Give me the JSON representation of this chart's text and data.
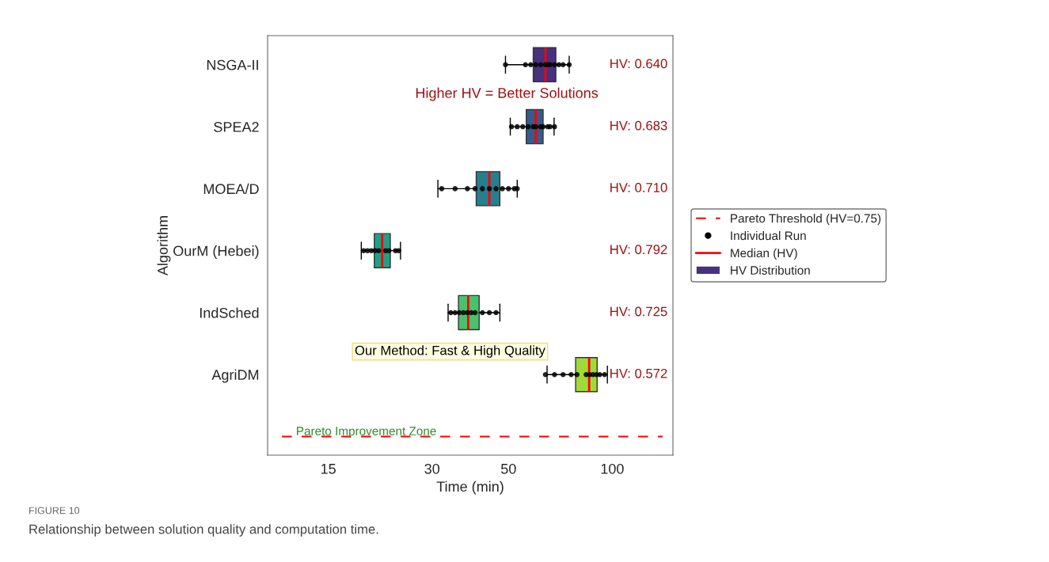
{
  "chart_data": {
    "type": "box",
    "orientation": "horizontal",
    "xlabel": "Time (min)",
    "ylabel": "Algorithm",
    "categories": [
      "NSGA-II",
      "SPEA2",
      "MOEA/D",
      "OurM (Hebei)",
      "IndSched",
      "AgriDM",
      null
    ],
    "log": "x",
    "xlim": [
      10,
      150
    ],
    "xticks": [
      15,
      30,
      50,
      100
    ],
    "grid": false,
    "legend": "right",
    "series": [
      {
        "type": "line",
        "name": "Pareto Threshold (HV=0.75)",
        "color": "#ff0000",
        "line_style": "dashed",
        "x": [
          null,
          null
        ],
        "values": [
          11,
          140
        ]
      },
      {
        "type": "scatter",
        "name": "Individual Run",
        "color": "#000000",
        "marker": "circle",
        "x": [
          "NSGA-II",
          "NSGA-II",
          "NSGA-II",
          "NSGA-II",
          "NSGA-II",
          "NSGA-II",
          "NSGA-II",
          "NSGA-II",
          "NSGA-II",
          "NSGA-II",
          "NSGA-II",
          "NSGA-II",
          "SPEA2",
          "SPEA2",
          "SPEA2",
          "SPEA2",
          "SPEA2",
          "SPEA2",
          "SPEA2",
          "SPEA2",
          "SPEA2",
          "SPEA2",
          "SPEA2",
          "MOEA/D",
          "MOEA/D",
          "MOEA/D",
          "MOEA/D",
          "MOEA/D",
          "MOEA/D",
          "MOEA/D",
          "MOEA/D",
          "MOEA/D",
          "MOEA/D",
          "MOEA/D",
          "OurM (Hebei)",
          "OurM (Hebei)",
          "OurM (Hebei)",
          "OurM (Hebei)",
          "OurM (Hebei)",
          "OurM (Hebei)",
          "OurM (Hebei)",
          "OurM (Hebei)",
          "OurM (Hebei)",
          "IndSched",
          "IndSched",
          "IndSched",
          "IndSched",
          "IndSched",
          "IndSched",
          "IndSched",
          "IndSched",
          "IndSched",
          "IndSched",
          "AgriDM",
          "AgriDM",
          "AgriDM",
          "AgriDM",
          "AgriDM",
          "AgriDM",
          "AgriDM",
          "AgriDM",
          "AgriDM",
          "AgriDM",
          "AgriDM"
        ],
        "values": [
          49,
          56,
          58,
          60,
          62,
          64,
          65,
          66,
          68,
          70,
          72,
          75,
          51,
          53,
          55,
          57,
          59,
          60,
          62,
          63,
          65,
          66,
          68,
          32,
          35,
          38,
          40,
          42,
          44,
          46,
          48,
          50,
          52,
          53,
          19,
          19.5,
          20,
          20.5,
          21,
          22,
          22.5,
          23.5,
          24,
          34,
          35,
          36,
          37,
          38,
          39,
          40,
          42,
          44,
          46,
          64,
          68,
          72,
          76,
          79,
          84,
          86,
          88,
          90,
          92,
          95
        ]
      },
      {
        "name": "HV Distribution",
        "color": "#46327e",
        "colors": [
          "#46327e",
          "#365c8d",
          "#277f8e",
          "#1fa187",
          "#4ac16d",
          "#a0da39",
          null
        ],
        "boxes": [
          {
            "low": 49,
            "q1": 59,
            "median": 64,
            "q3": 68.6,
            "high": 75
          },
          {
            "low": 50.6,
            "q1": 56.3,
            "median": 60,
            "q3": 63,
            "high": 67.8
          },
          {
            "low": 31.2,
            "q1": 40.3,
            "median": 44,
            "q3": 47.2,
            "high": 53
          },
          {
            "low": 18.7,
            "q1": 20.4,
            "median": 21.5,
            "q3": 22.7,
            "high": 24.3
          },
          {
            "low": 33.4,
            "q1": 35.8,
            "median": 38.2,
            "q3": 41.1,
            "high": 47.2
          },
          {
            "low": 64.7,
            "q1": 78.3,
            "median": 85.7,
            "q3": 90.4,
            "high": 96.8
          },
          null
        ]
      }
    ],
    "annotations": [
      "Higher HV = Better Solutions",
      "Our Method: Fast & High Quality",
      "Pareto Improvement Zone",
      "FIGURE 10",
      "Relationship between solution quality and computation time.",
      "Median (HV)",
      "HV: 0.640",
      "HV: 0.683",
      "HV: 0.710",
      "HV: 0.792",
      "HV: 0.725",
      "HV: 0.572"
    ]
  }
}
